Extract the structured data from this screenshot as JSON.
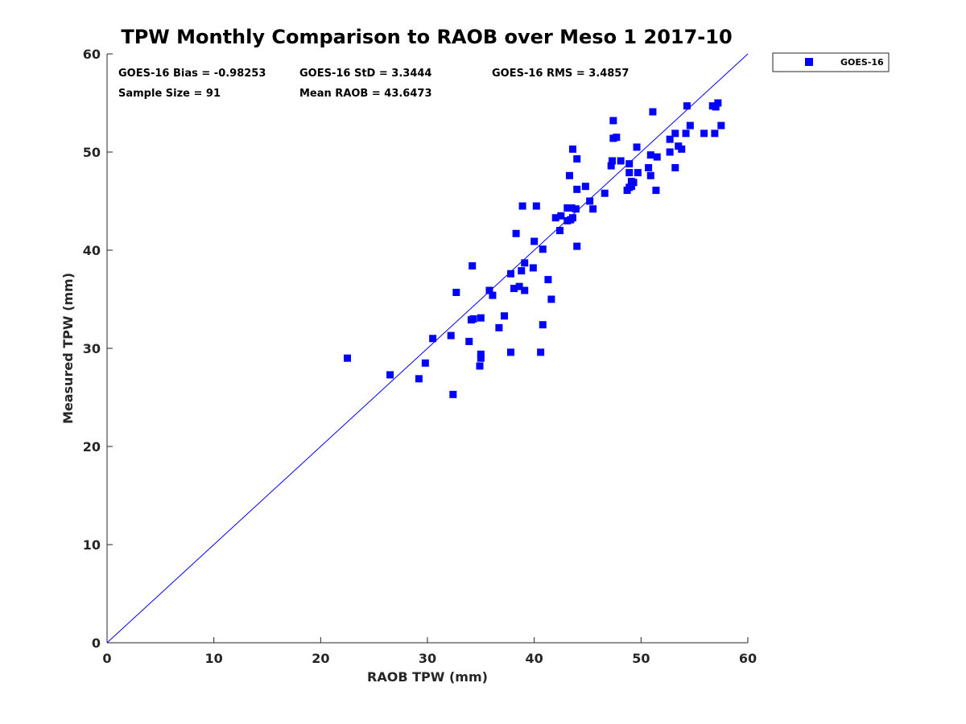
{
  "chart_data": {
    "type": "scatter",
    "title": "TPW Monthly Comparison to RAOB over Meso 1 2017-10",
    "xlabel": "RAOB TPW (mm)",
    "ylabel": "Measured TPW (mm)",
    "xlim": [
      0,
      60
    ],
    "ylim": [
      0,
      60
    ],
    "xticks": [
      "0",
      "10",
      "20",
      "30",
      "40",
      "50",
      "60"
    ],
    "yticks": [
      "0",
      "10",
      "20",
      "30",
      "40",
      "50",
      "60"
    ],
    "xtick_values": [
      0,
      10,
      20,
      30,
      40,
      50,
      60
    ],
    "ytick_values": [
      0,
      10,
      20,
      30,
      40,
      50,
      60
    ],
    "grid": false,
    "legend_position": "outside top-right",
    "reference_line": {
      "x": [
        0,
        60
      ],
      "y": [
        0,
        60
      ],
      "color": "#0000ff"
    },
    "stats": {
      "bias": "GOES-16 Bias = -0.98253",
      "std": "GOES-16 StD = 3.3444",
      "rms": "GOES-16 RMS = 3.4857",
      "sample_size": "Sample Size = 91",
      "mean_raob": "Mean RAOB = 43.6473"
    },
    "series": [
      {
        "name": "GOES-16",
        "color": "#0000ff",
        "marker": "square",
        "points": [
          [
            22.5,
            29.0
          ],
          [
            26.5,
            27.3
          ],
          [
            29.2,
            26.9
          ],
          [
            29.8,
            28.5
          ],
          [
            30.5,
            31.0
          ],
          [
            32.2,
            31.3
          ],
          [
            32.4,
            25.3
          ],
          [
            32.7,
            35.7
          ],
          [
            33.9,
            30.7
          ],
          [
            34.1,
            32.9
          ],
          [
            34.3,
            33.0
          ],
          [
            34.2,
            38.4
          ],
          [
            34.9,
            28.2
          ],
          [
            35.0,
            29.0
          ],
          [
            35.0,
            29.4
          ],
          [
            35.0,
            33.1
          ],
          [
            35.8,
            35.9
          ],
          [
            36.1,
            35.4
          ],
          [
            36.7,
            32.1
          ],
          [
            37.2,
            33.3
          ],
          [
            37.8,
            29.6
          ],
          [
            37.8,
            37.6
          ],
          [
            38.1,
            36.1
          ],
          [
            38.3,
            41.7
          ],
          [
            38.6,
            36.3
          ],
          [
            38.8,
            37.9
          ],
          [
            38.9,
            44.5
          ],
          [
            39.1,
            35.9
          ],
          [
            39.1,
            38.7
          ],
          [
            39.9,
            38.2
          ],
          [
            40.0,
            40.9
          ],
          [
            40.2,
            44.5
          ],
          [
            40.6,
            29.6
          ],
          [
            40.8,
            32.4
          ],
          [
            40.8,
            40.1
          ],
          [
            41.3,
            37.0
          ],
          [
            41.6,
            35.0
          ],
          [
            42.0,
            43.3
          ],
          [
            42.4,
            42.0
          ],
          [
            42.5,
            43.5
          ],
          [
            43.1,
            43.0
          ],
          [
            43.1,
            44.3
          ],
          [
            43.3,
            47.6
          ],
          [
            43.4,
            43.1
          ],
          [
            43.5,
            44.3
          ],
          [
            43.6,
            43.3
          ],
          [
            43.6,
            50.3
          ],
          [
            43.9,
            44.2
          ],
          [
            44.0,
            40.4
          ],
          [
            44.0,
            46.2
          ],
          [
            44.0,
            49.3
          ],
          [
            44.8,
            46.5
          ],
          [
            45.2,
            45.0
          ],
          [
            45.5,
            44.2
          ],
          [
            46.6,
            45.8
          ],
          [
            47.2,
            48.6
          ],
          [
            47.3,
            49.1
          ],
          [
            47.4,
            51.4
          ],
          [
            47.4,
            53.2
          ],
          [
            47.7,
            51.5
          ],
          [
            48.1,
            49.1
          ],
          [
            48.7,
            46.1
          ],
          [
            48.9,
            46.4
          ],
          [
            48.9,
            47.9
          ],
          [
            48.9,
            48.8
          ],
          [
            49.1,
            46.5
          ],
          [
            49.1,
            47.0
          ],
          [
            49.3,
            46.9
          ],
          [
            49.6,
            50.5
          ],
          [
            49.7,
            47.9
          ],
          [
            50.7,
            48.4
          ],
          [
            50.9,
            47.6
          ],
          [
            50.9,
            49.7
          ],
          [
            51.1,
            54.1
          ],
          [
            51.4,
            46.1
          ],
          [
            51.5,
            49.5
          ],
          [
            52.7,
            50.0
          ],
          [
            52.7,
            51.3
          ],
          [
            53.2,
            48.4
          ],
          [
            53.2,
            51.9
          ],
          [
            53.5,
            50.6
          ],
          [
            53.8,
            50.3
          ],
          [
            54.2,
            51.9
          ],
          [
            54.3,
            54.7
          ],
          [
            54.6,
            52.7
          ],
          [
            55.9,
            51.9
          ],
          [
            56.7,
            54.7
          ],
          [
            56.9,
            51.9
          ],
          [
            57.0,
            54.6
          ],
          [
            57.2,
            55.0
          ],
          [
            57.5,
            52.7
          ]
        ]
      }
    ]
  }
}
